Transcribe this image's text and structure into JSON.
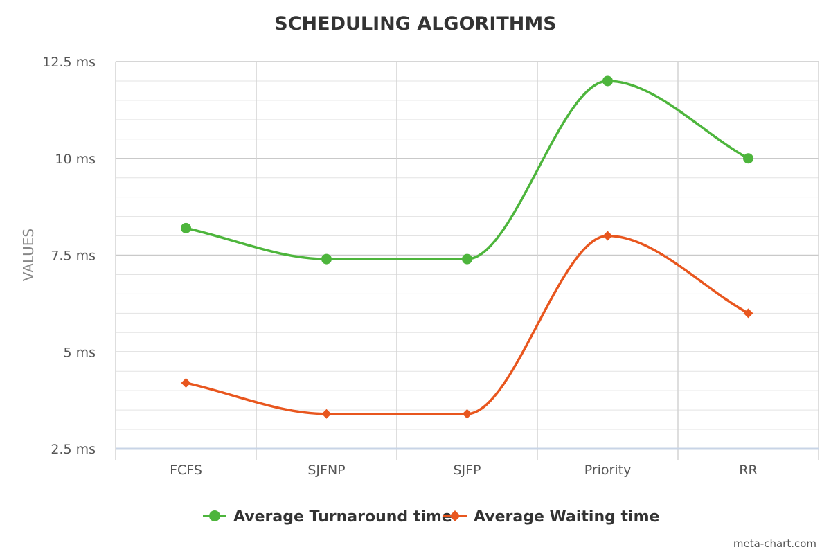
{
  "chart_data": {
    "type": "line",
    "title": "SCHEDULING ALGORITHMS",
    "ylabel": "VALUES",
    "xlabel": "",
    "categories": [
      "FCFS",
      "SJFNP",
      "SJFP",
      "Priority",
      "RR"
    ],
    "y_ticks": [
      "2.5 ms",
      "5 ms",
      "7.5 ms",
      "10 ms",
      "12.5 ms"
    ],
    "y_tick_values": [
      2.5,
      5,
      7.5,
      10,
      12.5
    ],
    "ylim": [
      2.5,
      12.5
    ],
    "unit": "ms",
    "grid": true,
    "smooth": true,
    "legend_position": "bottom",
    "series": [
      {
        "name": "Average Turnaround time",
        "values": [
          8.2,
          7.4,
          7.4,
          12.0,
          10.0
        ],
        "color": "#4db53c",
        "marker": "circle"
      },
      {
        "name": "Average Waiting time",
        "values": [
          4.2,
          3.4,
          3.4,
          8.0,
          6.0
        ],
        "color": "#e8561e",
        "marker": "diamond"
      }
    ]
  },
  "credit": "meta-chart.com"
}
